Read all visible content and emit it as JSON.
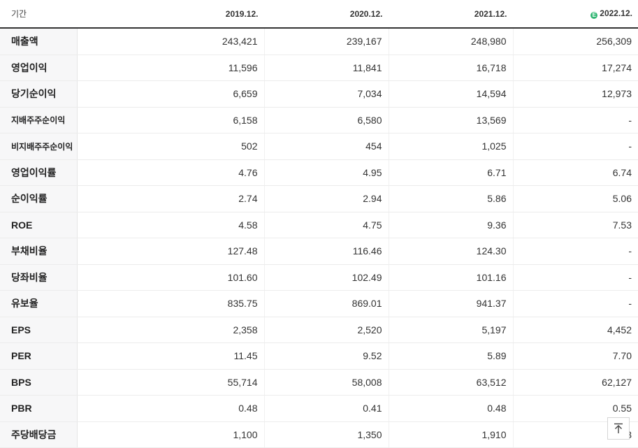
{
  "table": {
    "period_label": "기간",
    "estimate_badge": "E",
    "periods": [
      "2019.12.",
      "2020.12.",
      "2021.12.",
      "2022.12."
    ],
    "rows": [
      {
        "label": "매출액",
        "values": [
          "243,421",
          "239,167",
          "248,980",
          "256,309"
        ]
      },
      {
        "label": "영업이익",
        "values": [
          "11,596",
          "11,841",
          "16,718",
          "17,274"
        ]
      },
      {
        "label": "당기순이익",
        "values": [
          "6,659",
          "7,034",
          "14,594",
          "12,973"
        ]
      },
      {
        "label": "지배주주순이익",
        "values": [
          "6,158",
          "6,580",
          "13,569",
          "-"
        ]
      },
      {
        "label": "비지배주주순이익",
        "values": [
          "502",
          "454",
          "1,025",
          "-"
        ]
      },
      {
        "label": "영업이익률",
        "values": [
          "4.76",
          "4.95",
          "6.71",
          "6.74"
        ]
      },
      {
        "label": "순이익률",
        "values": [
          "2.74",
          "2.94",
          "5.86",
          "5.06"
        ]
      },
      {
        "label": "ROE",
        "values": [
          "4.58",
          "4.75",
          "9.36",
          "7.53"
        ]
      },
      {
        "label": "부채비율",
        "values": [
          "127.48",
          "116.46",
          "124.30",
          "-"
        ]
      },
      {
        "label": "당좌비율",
        "values": [
          "101.60",
          "102.49",
          "101.16",
          "-"
        ]
      },
      {
        "label": "유보율",
        "values": [
          "835.75",
          "869.01",
          "941.37",
          "-"
        ]
      },
      {
        "label": "EPS",
        "values": [
          "2,358",
          "2,520",
          "5,197",
          "4,452"
        ]
      },
      {
        "label": "PER",
        "values": [
          "11.45",
          "9.52",
          "5.89",
          "7.70"
        ]
      },
      {
        "label": "BPS",
        "values": [
          "55,714",
          "58,008",
          "63,512",
          "62,127"
        ]
      },
      {
        "label": "PBR",
        "values": [
          "0.48",
          "0.41",
          "0.48",
          "0.55"
        ]
      },
      {
        "label": "주당배당금",
        "values": [
          "1,100",
          "1,350",
          "1,910",
          "1,3"
        ]
      }
    ]
  },
  "scroll_top_icon": "arrow-up-to-top-icon",
  "colors": {
    "estimate_badge": "#31b673",
    "header_rule": "#333333",
    "label_bg": "#f7f7f8"
  }
}
